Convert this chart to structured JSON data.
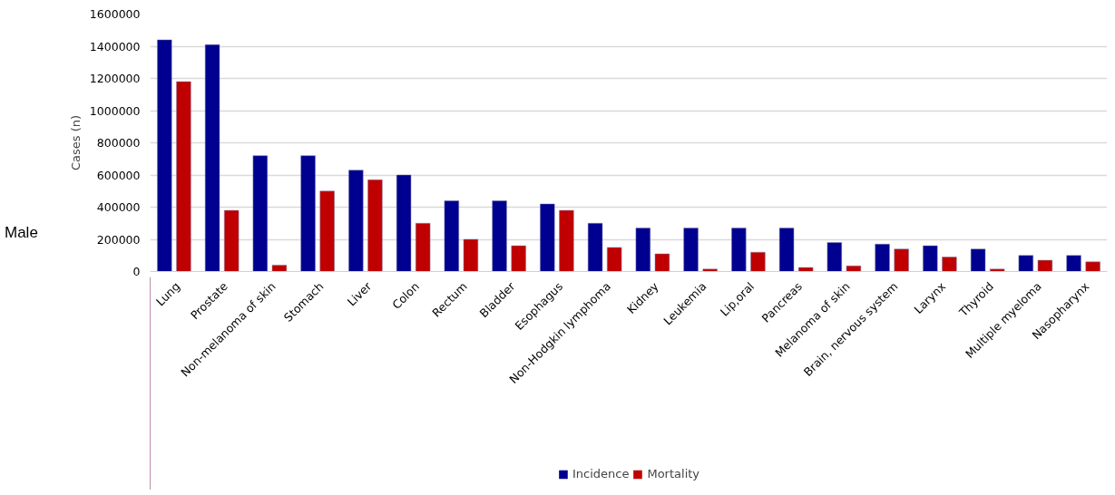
{
  "chart_data": {
    "type": "bar",
    "categories": [
      "Lung",
      "Prostate",
      "Non-melanoma of skin",
      "Stomach",
      "Liver",
      "Colon",
      "Rectum",
      "Bladder",
      "Esophagus",
      "Non-Hodgkin lymphoma",
      "Kidney",
      "Leukemia",
      "Lip,oral",
      "Pancreas",
      "Melanoma of skin",
      "Brain, nervous system",
      "Larynx",
      "Thyroid",
      "Multiple myeloma",
      "Nasopharynx"
    ],
    "series": [
      {
        "name": "Incidence",
        "color": "#000090",
        "values": [
          1440000,
          1410000,
          720000,
          720000,
          630000,
          600000,
          440000,
          440000,
          420000,
          300000,
          270000,
          270000,
          270000,
          270000,
          180000,
          170000,
          160000,
          140000,
          100000,
          100000
        ]
      },
      {
        "name": "Mortality",
        "color": "#c00000",
        "values": [
          1180000,
          380000,
          40000,
          500000,
          570000,
          300000,
          200000,
          160000,
          380000,
          150000,
          110000,
          15000,
          120000,
          25000,
          35000,
          140000,
          90000,
          15000,
          70000,
          60000
        ]
      }
    ],
    "ylabel": "Cases (n)",
    "ylim": [
      0,
      1600000
    ],
    "yticks": [
      0,
      200000,
      400000,
      600000,
      800000,
      1000000,
      1200000,
      1400000,
      1600000
    ],
    "grid": "y",
    "legend": "bottom",
    "annotations": [
      "Male"
    ]
  }
}
